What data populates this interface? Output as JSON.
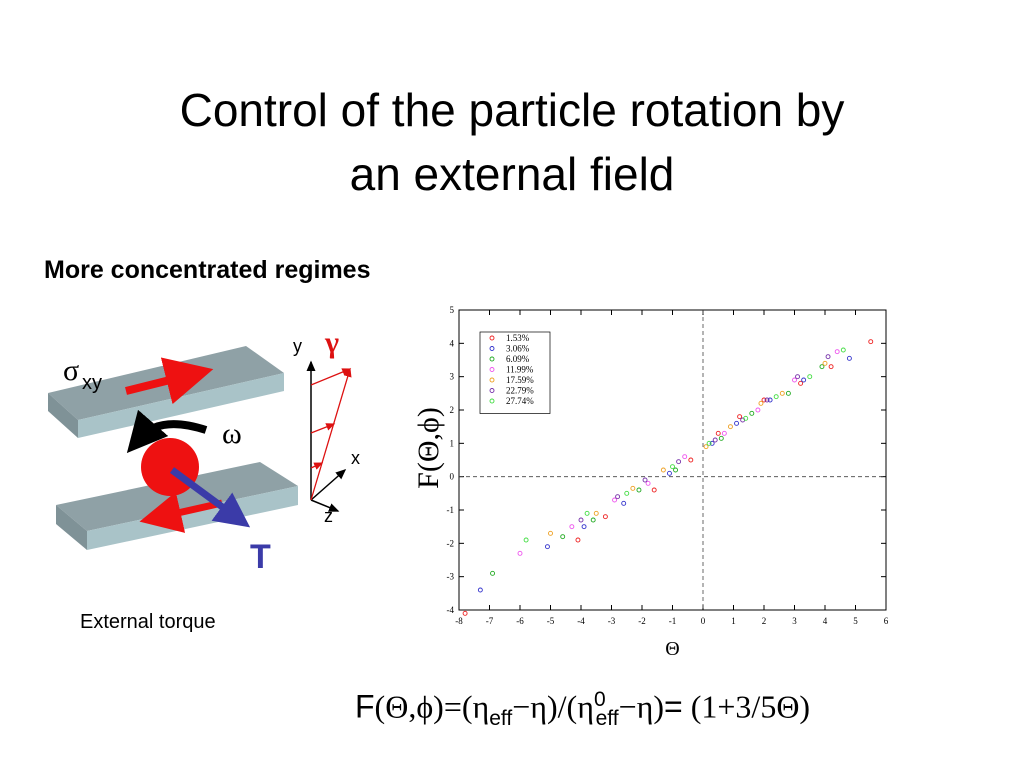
{
  "slide": {
    "title_line1": "Control of the particle rotation by",
    "title_line2": "an external field",
    "subtitle": "More concentrated regimes",
    "caption": "External torque"
  },
  "diagram": {
    "sigma": "σ",
    "sigma_sub": "xy",
    "omega": "ω",
    "torque": "T",
    "gamma": "γ",
    "axis_y": "y",
    "axis_x": "x",
    "axis_z": "z",
    "colors": {
      "plate_top": "#8fa1a6",
      "plate_side": "#a9c3c8",
      "arrow": "#ee1111",
      "particle": "#ee1111",
      "torque": "#3b3ba8",
      "gamma": "#dd1111"
    }
  },
  "formula": {
    "f": "F",
    "part1": "(Θ,ϕ)=(η",
    "sub1": "eff",
    "part2": "−η)/(η",
    "sup0": "0",
    "sub2": "eff",
    "part3": "−η)",
    "eq": "=",
    "part4": " (1+3/5Θ)"
  },
  "chart_data": {
    "type": "scatter",
    "xlabel": "Θ",
    "ylabel": "F(Θ,ϕ)",
    "xlim": [
      -8,
      6
    ],
    "ylim": [
      -4,
      5
    ],
    "xticks": [
      "-8",
      "-7",
      "-6",
      "-5",
      "-4",
      "-3",
      "-2",
      "-1",
      "0",
      "1",
      "2",
      "3",
      "4",
      "5",
      "6"
    ],
    "yticks": [
      "-4",
      "-3",
      "-2",
      "-1",
      "0",
      "1",
      "2",
      "3",
      "4",
      "5"
    ],
    "reference_lines": {
      "x": 0,
      "y": 0,
      "style": "dashed"
    },
    "legend_position": "top-left",
    "series": [
      {
        "name": "1.53%",
        "color": "#ee2222",
        "x": [
          -7.8,
          -4.1,
          -3.2,
          -1.6,
          -0.4,
          0.5,
          1.2,
          2.0,
          3.2,
          4.2,
          5.5
        ],
        "y": [
          -4.1,
          -1.9,
          -1.2,
          -0.4,
          0.5,
          1.3,
          1.8,
          2.3,
          2.8,
          3.3,
          4.05
        ]
      },
      {
        "name": "3.06%",
        "color": "#3333cc",
        "x": [
          -7.3,
          -5.1,
          -3.9,
          -2.6,
          -1.1,
          0.3,
          1.1,
          2.2,
          3.3,
          4.8
        ],
        "y": [
          -3.4,
          -2.1,
          -1.5,
          -0.8,
          0.1,
          1.0,
          1.6,
          2.3,
          2.9,
          3.55
        ]
      },
      {
        "name": "6.09%",
        "color": "#22aa22",
        "x": [
          -6.9,
          -4.6,
          -3.6,
          -2.1,
          -0.9,
          0.6,
          1.6,
          2.8,
          3.9
        ],
        "y": [
          -2.9,
          -1.8,
          -1.3,
          -0.4,
          0.2,
          1.15,
          1.9,
          2.5,
          3.3
        ]
      },
      {
        "name": "11.99%",
        "color": "#ee55ee",
        "x": [
          -6.0,
          -4.3,
          -2.9,
          -1.8,
          -0.6,
          0.7,
          1.8,
          3.0,
          4.4
        ],
        "y": [
          -2.3,
          -1.5,
          -0.7,
          -0.2,
          0.6,
          1.3,
          2.0,
          2.9,
          3.75
        ]
      },
      {
        "name": "17.59%",
        "color": "#eea022",
        "x": [
          -5.0,
          -3.5,
          -2.3,
          -1.3,
          0.1,
          0.9,
          1.9,
          2.6,
          4.0
        ],
        "y": [
          -1.7,
          -1.1,
          -0.35,
          0.2,
          0.9,
          1.5,
          2.2,
          2.5,
          3.4
        ]
      },
      {
        "name": "22.79%",
        "color": "#7733aa",
        "x": [
          -4.0,
          -2.8,
          -1.9,
          -0.8,
          0.4,
          1.3,
          2.1,
          3.1,
          4.1
        ],
        "y": [
          -1.3,
          -0.6,
          -0.1,
          0.45,
          1.1,
          1.7,
          2.3,
          3.0,
          3.6
        ]
      },
      {
        "name": "27.74%",
        "color": "#44dd44",
        "x": [
          -5.8,
          -3.8,
          -2.5,
          -1.0,
          0.2,
          1.4,
          2.4,
          3.5,
          4.6
        ],
        "y": [
          -1.9,
          -1.1,
          -0.5,
          0.3,
          1.0,
          1.75,
          2.4,
          3.0,
          3.8
        ]
      }
    ]
  }
}
